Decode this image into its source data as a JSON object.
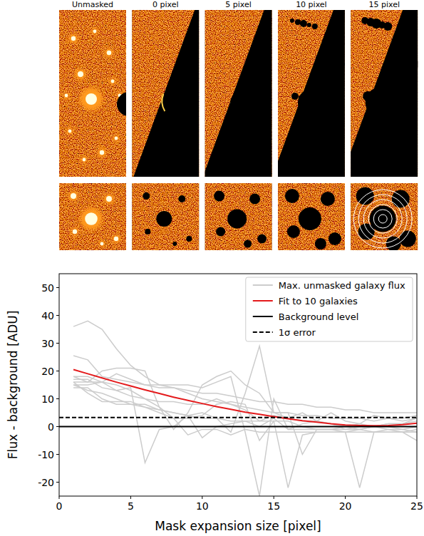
{
  "image_panels": {
    "titles": [
      "Unmasked",
      "0 pixel",
      "5 pixel",
      "10 pixel",
      "15 pixel"
    ]
  },
  "chart_data": {
    "type": "line",
    "x_label": "Mask expansion size [pixel]",
    "y_label": "Flux - background [ADU]",
    "xlim": [
      0,
      25
    ],
    "ylim": [
      -25,
      55
    ],
    "xticks": [
      0,
      5,
      10,
      15,
      20,
      25
    ],
    "yticks": [
      -20,
      -10,
      0,
      10,
      20,
      30,
      40,
      50
    ],
    "legend": "upper right",
    "grid": false,
    "series": [
      {
        "name": "Max. unmasked galaxy flux",
        "color": "#cccccc",
        "line_style": "solid",
        "x": [
          1,
          2,
          3,
          4,
          5,
          6,
          7,
          8,
          9,
          10,
          11,
          12,
          13,
          14,
          15,
          16,
          17,
          18,
          19,
          20,
          21,
          22,
          23,
          24,
          25
        ],
        "values": [
          36,
          38,
          35,
          28,
          22,
          18,
          15,
          14,
          12,
          10,
          9,
          8,
          7,
          6,
          5,
          5,
          4,
          4,
          3,
          3,
          3,
          2,
          3,
          3,
          4
        ]
      },
      {
        "color": "#cccccc",
        "line_style": "solid",
        "x": [
          1,
          2,
          3,
          4,
          5,
          6,
          7,
          8,
          9,
          10,
          11,
          12,
          13,
          14,
          15,
          16,
          17,
          18,
          19,
          20,
          21,
          22,
          23,
          24,
          25
        ],
        "values": [
          25.5,
          24,
          18,
          17,
          16,
          15,
          14,
          14,
          13,
          12,
          12,
          11,
          10,
          9,
          9,
          8,
          8,
          7,
          7,
          6,
          6,
          5,
          5,
          5,
          5
        ]
      },
      {
        "color": "#cccccc",
        "line_style": "solid",
        "x": [
          1,
          2,
          3,
          4,
          5,
          6,
          7,
          8,
          9,
          10,
          11,
          12,
          13,
          14,
          15,
          16,
          17,
          18,
          19,
          20,
          21,
          22,
          23,
          24,
          25
        ],
        "values": [
          18,
          16,
          20,
          21,
          21,
          20,
          7,
          -1,
          5,
          15,
          18,
          20,
          15,
          12,
          5,
          3,
          5,
          2,
          5,
          2,
          1,
          4,
          3,
          2,
          3
        ]
      },
      {
        "color": "#cccccc",
        "line_style": "solid",
        "x": [
          1,
          2,
          3,
          4,
          5,
          6,
          7,
          8,
          9,
          10,
          11,
          12,
          13,
          14,
          15,
          16,
          17,
          18,
          19,
          20,
          21,
          22,
          23,
          24,
          25
        ],
        "values": [
          17,
          17,
          14,
          13,
          14,
          -13,
          -1,
          0,
          4,
          5,
          3,
          -2,
          12,
          29,
          5,
          5,
          -10,
          -1,
          -1,
          0,
          -1,
          -2,
          -1,
          -1,
          -2
        ]
      },
      {
        "color": "#cccccc",
        "line_style": "solid",
        "x": [
          1,
          2,
          3,
          4,
          5,
          6,
          7,
          8,
          9,
          10,
          11,
          12,
          13,
          14,
          15,
          16,
          17,
          18,
          19,
          20,
          21,
          22,
          23,
          24,
          25
        ],
        "values": [
          15,
          15,
          16,
          19,
          17,
          15,
          15,
          15,
          15,
          14,
          16,
          18,
          -2,
          -25,
          10,
          -1,
          -1,
          -1,
          -1,
          -1,
          -1,
          0,
          1,
          1,
          2
        ]
      },
      {
        "color": "#cccccc",
        "line_style": "solid",
        "x": [
          1,
          2,
          3,
          4,
          5,
          6,
          7,
          8,
          9,
          10,
          11,
          12,
          13,
          14,
          15,
          16,
          17,
          18,
          19,
          20,
          21,
          22,
          23,
          24,
          25
        ],
        "values": [
          14,
          14,
          10,
          8,
          8,
          7,
          5,
          3,
          3,
          4,
          8,
          9,
          8,
          -5,
          2,
          -22,
          -3,
          -2,
          -2,
          -2,
          -22,
          -2,
          -2,
          -2,
          -5
        ]
      },
      {
        "color": "#cccccc",
        "line_style": "solid",
        "x": [
          1,
          2,
          3,
          4,
          5,
          6,
          7,
          8,
          9,
          10,
          11,
          12,
          13,
          14,
          15,
          16,
          17,
          18,
          19,
          20,
          21,
          22,
          23,
          24,
          25
        ],
        "values": [
          16,
          16,
          16,
          15,
          13,
          10,
          7,
          3,
          -3,
          -1,
          -1,
          -3,
          -1,
          -2,
          -2,
          -2,
          -2,
          -2,
          -2,
          -2,
          -2,
          -2,
          -2,
          -2,
          -2
        ]
      },
      {
        "color": "#cccccc",
        "line_style": "solid",
        "x": [
          1,
          2,
          3,
          4,
          5,
          6,
          7,
          8,
          9,
          10,
          11,
          12,
          13,
          14,
          15,
          16,
          17,
          18,
          19,
          20,
          21,
          22,
          23,
          24,
          25
        ],
        "values": [
          15,
          13,
          12,
          10,
          8,
          8,
          6,
          5,
          4,
          -4,
          0,
          1,
          2,
          0,
          3,
          -1,
          1,
          2,
          1,
          -1,
          0,
          0,
          -1,
          -2,
          -1
        ]
      },
      {
        "color": "#cccccc",
        "line_style": "solid",
        "x": [
          1,
          2,
          3,
          4,
          5,
          6,
          7,
          8,
          9,
          10,
          11,
          12,
          13,
          14,
          15,
          16,
          17,
          18,
          19,
          20,
          21,
          22,
          23,
          24,
          25
        ],
        "values": [
          16,
          12,
          9,
          9,
          9,
          7,
          6,
          5,
          4,
          3,
          3,
          2,
          2,
          2,
          4,
          3,
          2,
          2,
          1,
          0,
          1,
          0,
          0,
          -1,
          0
        ]
      },
      {
        "color": "#cccccc",
        "line_style": "solid",
        "x": [
          1,
          2,
          3,
          4,
          5,
          6,
          7,
          8,
          9,
          10,
          11,
          12,
          13,
          14,
          15,
          16,
          17,
          18,
          19,
          20,
          21,
          22,
          23,
          24,
          25
        ],
        "values": [
          18,
          18,
          16,
          13,
          11,
          10,
          9,
          9,
          8,
          8,
          10,
          8,
          6,
          2,
          2,
          2,
          0,
          -1,
          -1,
          -2,
          -1,
          0,
          1,
          1,
          3
        ]
      },
      {
        "name": "Fit to 10 galaxies",
        "color": "#e41a1c",
        "line_style": "solid",
        "x": [
          1,
          2,
          3,
          4,
          5,
          6,
          7,
          8,
          9,
          10,
          11,
          12,
          13,
          14,
          15,
          16,
          17,
          18,
          19,
          20,
          21,
          22,
          23,
          24,
          25
        ],
        "values": [
          20.5,
          19,
          17.5,
          16,
          14.6,
          13.2,
          11.9,
          10.6,
          9.4,
          8.3,
          7.2,
          6.2,
          5.2,
          4.4,
          3.6,
          2.8,
          2.1,
          1.6,
          1.0,
          0.6,
          0.4,
          0.3,
          0.4,
          0.7,
          1.2
        ]
      },
      {
        "name": "Background level",
        "color": "#000000",
        "line_style": "solid",
        "x": [
          0,
          25
        ],
        "values": [
          0,
          0
        ]
      },
      {
        "name": "1σ error",
        "color": "#000000",
        "line_style": "dashed",
        "x": [
          0,
          25
        ],
        "values": [
          3.3,
          3.3
        ]
      }
    ]
  }
}
